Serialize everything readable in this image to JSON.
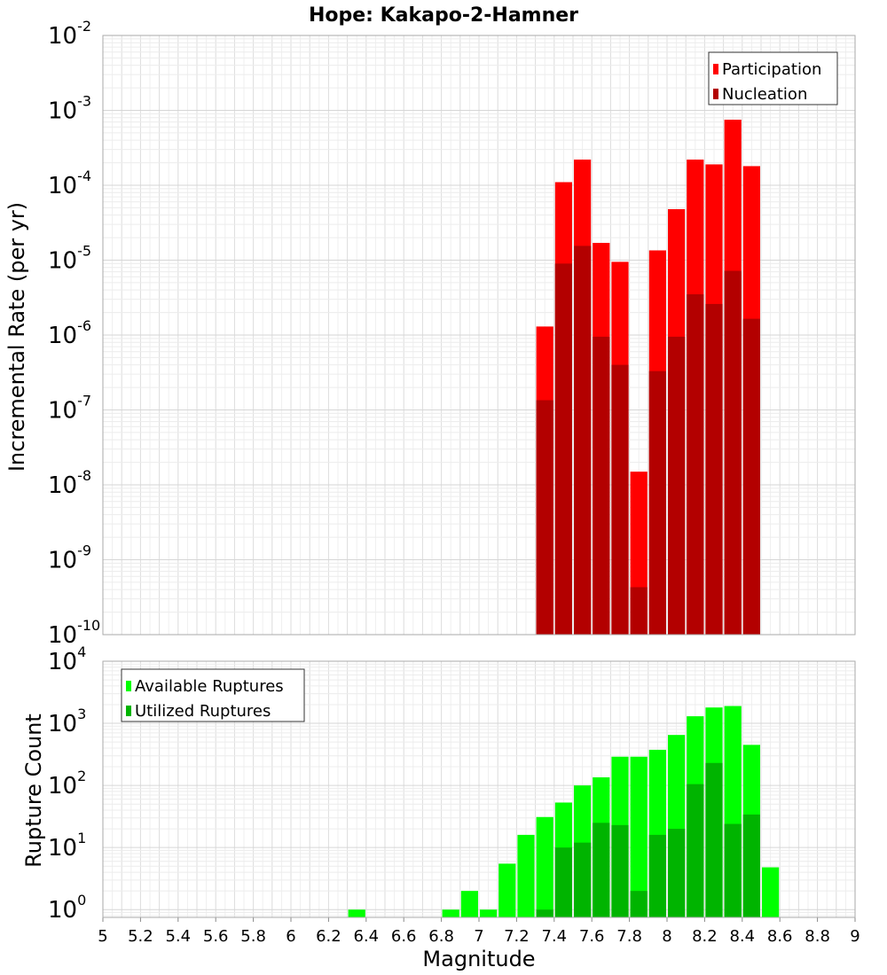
{
  "title": "Hope: Kakapo-2-Hamner",
  "chart_data": [
    {
      "type": "bar",
      "ylabel": "Incremental Rate (per yr)",
      "xlabel": "",
      "yscale": "log",
      "xlim": [
        5,
        9
      ],
      "ylim": [
        1e-10,
        0.01
      ],
      "y_ticks": [
        {
          "base": "10",
          "exp": "-10",
          "v": 1e-10
        },
        {
          "base": "10",
          "exp": "-9",
          "v": 1e-09
        },
        {
          "base": "10",
          "exp": "-8",
          "v": 1e-08
        },
        {
          "base": "10",
          "exp": "-7",
          "v": 1e-07
        },
        {
          "base": "10",
          "exp": "-6",
          "v": 1e-06
        },
        {
          "base": "10",
          "exp": "-5",
          "v": 1e-05
        },
        {
          "base": "10",
          "exp": "-4",
          "v": 0.0001
        },
        {
          "base": "10",
          "exp": "-3",
          "v": 0.001
        },
        {
          "base": "10",
          "exp": "-2",
          "v": 0.01
        }
      ],
      "grid": true,
      "legend_position": "top-right",
      "x": [
        7.35,
        7.45,
        7.55,
        7.65,
        7.75,
        7.85,
        7.95,
        8.05,
        8.15,
        8.25,
        8.35,
        8.45
      ],
      "series": [
        {
          "name": "Participation",
          "color": "#ff0000",
          "values": [
            1.3e-06,
            0.00011,
            0.00022,
            1.7e-05,
            9.5e-06,
            1.5e-08,
            1.35e-05,
            4.8e-05,
            0.00022,
            0.00019,
            0.00075,
            0.00018
          ]
        },
        {
          "name": "Nucleation",
          "color": "#b30000",
          "values": [
            1.35e-07,
            9e-06,
            1.55e-05,
            9.5e-07,
            4e-07,
            4.3e-10,
            3.3e-07,
            9.5e-07,
            3.5e-06,
            2.6e-06,
            7.2e-06,
            1.65e-06
          ]
        }
      ]
    },
    {
      "type": "bar",
      "ylabel": "Rupture Count",
      "xlabel": "Magnitude",
      "yscale": "log",
      "xlim": [
        5,
        9
      ],
      "ylim": [
        0.75,
        10000
      ],
      "x_ticks": [
        "5",
        "5.2",
        "5.4",
        "5.6",
        "5.8",
        "6",
        "6.2",
        "6.4",
        "6.6",
        "6.8",
        "7",
        "7.2",
        "7.4",
        "7.6",
        "7.8",
        "8",
        "8.2",
        "8.4",
        "8.6",
        "8.8",
        "9"
      ],
      "y_ticks": [
        {
          "base": "10",
          "exp": "0",
          "v": 1
        },
        {
          "base": "10",
          "exp": "1",
          "v": 10
        },
        {
          "base": "10",
          "exp": "2",
          "v": 100
        },
        {
          "base": "10",
          "exp": "3",
          "v": 1000
        },
        {
          "base": "10",
          "exp": "4",
          "v": 10000
        }
      ],
      "grid": true,
      "legend_position": "top-left",
      "x": [
        6.35,
        6.85,
        6.95,
        7.05,
        7.15,
        7.25,
        7.35,
        7.45,
        7.55,
        7.65,
        7.75,
        7.85,
        7.95,
        8.05,
        8.15,
        8.25,
        8.35,
        8.45,
        8.55
      ],
      "series": [
        {
          "name": "Available Ruptures",
          "color": "#00ff00",
          "values": [
            1,
            1,
            2,
            1,
            5.5,
            16,
            31,
            53,
            100,
            135,
            290,
            290,
            375,
            650,
            1300,
            1800,
            1900,
            450,
            4.8
          ]
        },
        {
          "name": "Utilized Ruptures",
          "color": "#00b400",
          "values": [
            0,
            0,
            0,
            0,
            0,
            0,
            1,
            10,
            12,
            25,
            23,
            2,
            16,
            20,
            105,
            230,
            24,
            34,
            0
          ]
        }
      ]
    }
  ]
}
